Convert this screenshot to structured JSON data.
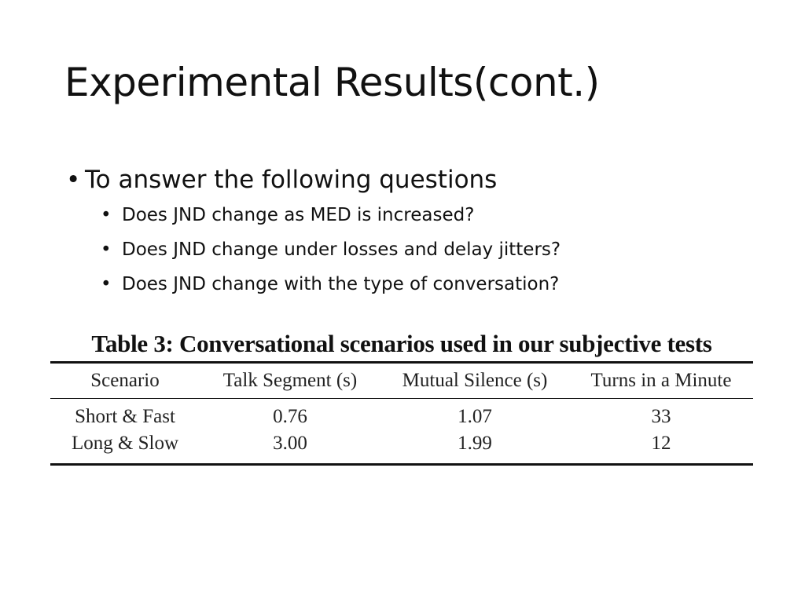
{
  "slide": {
    "title": "Experimental Results(cont.)",
    "bullet_main": "To answer the following questions",
    "sub_bullets": [
      "Does JND change as MED is increased?",
      "Does JND change under losses and delay jitters?",
      "Does JND change with the type of conversation?"
    ],
    "bullet_glyph": "•"
  },
  "table": {
    "caption": "Table 3: Conversational scenarios used in our subjective tests",
    "headers": [
      "Scenario",
      "Talk Segment (s)",
      "Mutual Silence (s)",
      "Turns in a Minute"
    ],
    "rows": [
      [
        "Short & Fast",
        "0.76",
        "1.07",
        "33"
      ],
      [
        "Long & Slow",
        "3.00",
        "1.99",
        "12"
      ]
    ]
  }
}
